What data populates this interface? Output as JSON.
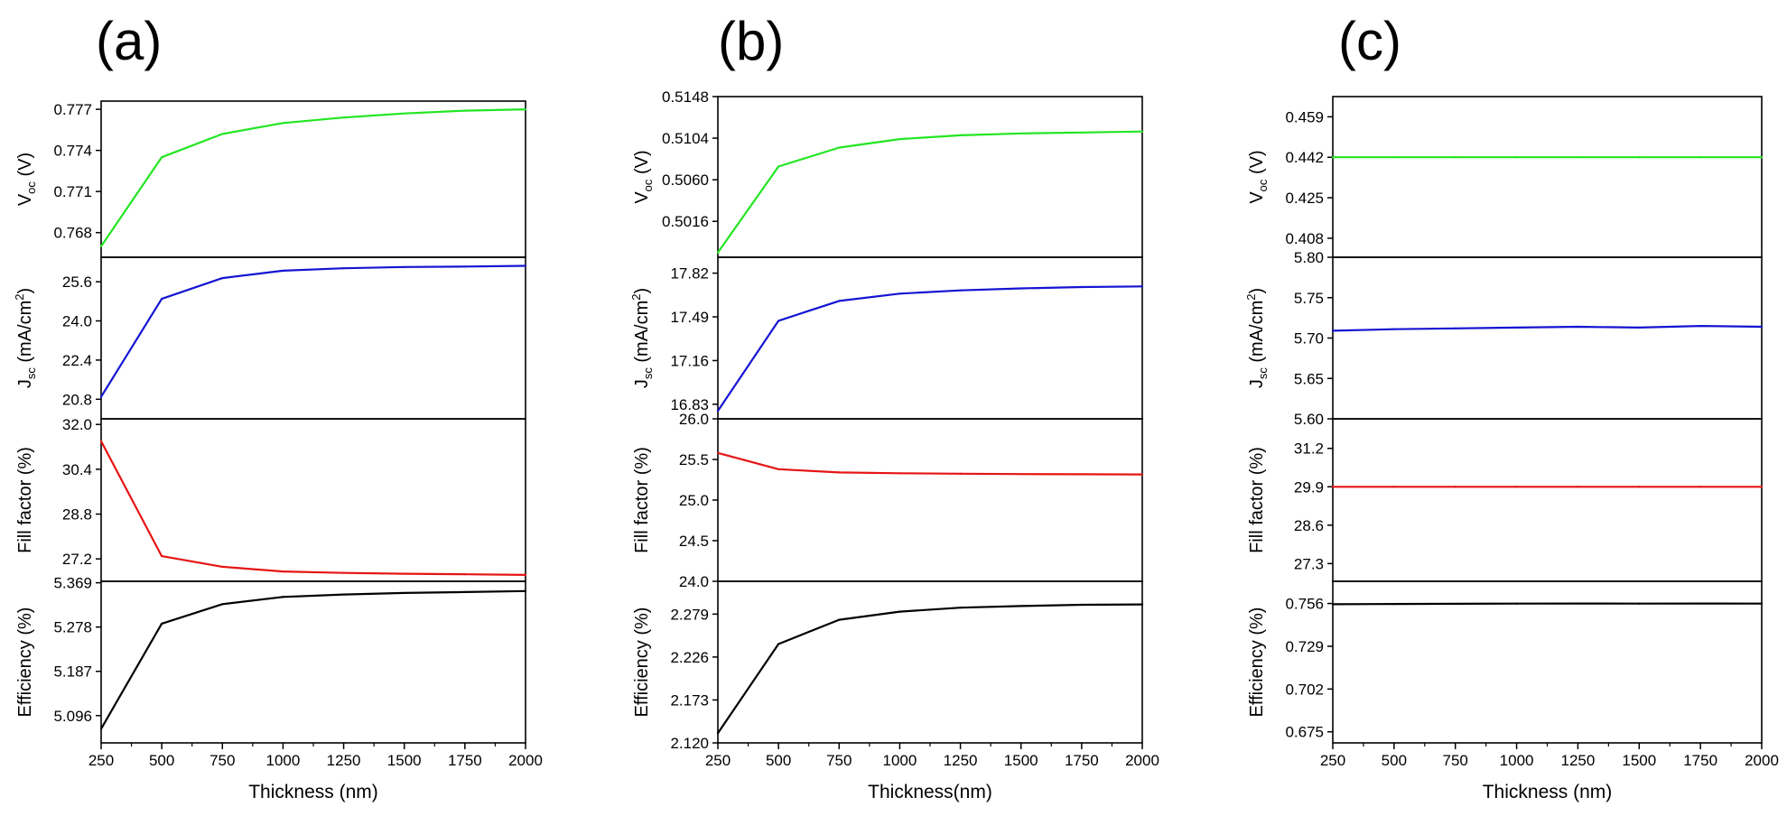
{
  "chart_data": [
    {
      "type": "line",
      "panel_label": "(a)",
      "xlabel": "Thickness (nm)",
      "x": [
        250,
        500,
        750,
        1000,
        1250,
        1500,
        1750,
        2000
      ],
      "xticks": [
        "250",
        "500",
        "750",
        "1000",
        "1250",
        "1500",
        "1750",
        "2000"
      ],
      "xlim": [
        250,
        2000
      ],
      "subplots": [
        {
          "ylabel": {
            "main": "V",
            "sub": "oc",
            "tail": " (V)"
          },
          "color": "#22e622",
          "ylim": [
            0.7662,
            0.7776
          ],
          "yticks": [
            0.768,
            0.771,
            0.774,
            0.777
          ],
          "ytick_labels": [
            "0.768",
            "0.771",
            "0.774",
            "0.777"
          ],
          "values": [
            0.767,
            0.7735,
            0.7752,
            0.776,
            0.7764,
            0.7767,
            0.7769,
            0.777
          ]
        },
        {
          "ylabel": {
            "main": "J",
            "sub": "sc",
            "tail": " (mA/cm",
            "sup": "2",
            "end": ")"
          },
          "color": "#1414d2",
          "ylim": [
            20.0,
            26.6
          ],
          "yticks": [
            20.8,
            22.4,
            24.0,
            25.6
          ],
          "ytick_labels": [
            "20.8",
            "22.4",
            "24.0",
            "25.6"
          ],
          "values": [
            20.9,
            24.9,
            25.75,
            26.05,
            26.15,
            26.2,
            26.22,
            26.25
          ]
        },
        {
          "ylabel": {
            "main": "Fill factor (%)"
          },
          "color": "#e61414",
          "ylim": [
            26.4,
            32.2
          ],
          "yticks": [
            27.2,
            28.8,
            30.4,
            32.0
          ],
          "ytick_labels": [
            "27.2",
            "28.8",
            "30.4",
            "32.0"
          ],
          "values": [
            31.4,
            27.3,
            26.92,
            26.75,
            26.7,
            26.67,
            26.65,
            26.63
          ]
        },
        {
          "ylabel": {
            "main": "Efficiency (%)"
          },
          "color": "#000000",
          "ylim": [
            5.04,
            5.372
          ],
          "yticks": [
            5.096,
            5.187,
            5.278,
            5.369
          ],
          "ytick_labels": [
            "5.096",
            "5.187",
            "5.278",
            "5.369"
          ],
          "values": [
            5.069,
            5.285,
            5.325,
            5.34,
            5.345,
            5.348,
            5.35,
            5.352
          ]
        }
      ]
    },
    {
      "type": "line",
      "panel_label": "(b)",
      "xlabel": "Thickness(nm)",
      "x": [
        250,
        500,
        750,
        1000,
        1250,
        1500,
        1750,
        2000
      ],
      "xticks": [
        "250",
        "500",
        "750",
        "1000",
        "1250",
        "1500",
        "1750",
        "2000"
      ],
      "xlim": [
        250,
        2000
      ],
      "subplots": [
        {
          "ylabel": {
            "main": "V",
            "sub": "oc",
            "tail": " (V)"
          },
          "color": "#22e622",
          "ylim": [
            0.4978,
            0.5148
          ],
          "yticks": [
            0.5016,
            0.506,
            0.5104,
            0.5148
          ],
          "ytick_labels": [
            "0.5016",
            "0.5060",
            "0.5104",
            "0.5148"
          ],
          "values": [
            0.4983,
            0.5074,
            0.5094,
            0.5103,
            0.5107,
            0.5109,
            0.511,
            0.5111
          ]
        },
        {
          "ylabel": {
            "main": "J",
            "sub": "sc",
            "tail": " (mA/cm",
            "sup": "2",
            "end": ")"
          },
          "color": "#1414d2",
          "ylim": [
            16.72,
            17.94
          ],
          "yticks": [
            16.83,
            17.16,
            17.49,
            17.82
          ],
          "ytick_labels": [
            "16.83",
            "17.16",
            "17.49",
            "17.82"
          ],
          "values": [
            16.78,
            17.46,
            17.61,
            17.665,
            17.69,
            17.705,
            17.715,
            17.72
          ]
        },
        {
          "ylabel": {
            "main": "Fill factor (%)"
          },
          "color": "#e61414",
          "ylim": [
            24.0,
            26.0
          ],
          "yticks": [
            24.0,
            24.5,
            25.0,
            25.5,
            26.0
          ],
          "ytick_labels": [
            "24.0",
            "24.5",
            "25.0",
            "25.5",
            "26.0"
          ],
          "values": [
            25.58,
            25.38,
            25.34,
            25.33,
            25.325,
            25.32,
            25.318,
            25.315
          ]
        },
        {
          "ylabel": {
            "main": "Efficiency (%)"
          },
          "color": "#000000",
          "ylim": [
            2.12,
            2.3195
          ],
          "yticks": [
            2.12,
            2.173,
            2.226,
            2.279
          ],
          "ytick_labels": [
            "2.120",
            "2.173",
            "2.226",
            "2.279"
          ],
          "values": [
            2.132,
            2.242,
            2.272,
            2.282,
            2.287,
            2.289,
            2.2905,
            2.291
          ]
        }
      ]
    },
    {
      "type": "line",
      "panel_label": "(c)",
      "xlabel": "Thickness (nm)",
      "x": [
        250,
        500,
        750,
        1000,
        1250,
        1500,
        1750,
        2000
      ],
      "xticks": [
        "250",
        "500",
        "750",
        "1000",
        "1250",
        "1500",
        "1750",
        "2000"
      ],
      "xlim": [
        250,
        2000
      ],
      "subplots": [
        {
          "ylabel": {
            "main": "V",
            "sub": "oc",
            "tail": " (V)"
          },
          "color": "#22e622",
          "ylim": [
            0.4,
            0.4675
          ],
          "yticks": [
            0.408,
            0.425,
            0.442,
            0.459
          ],
          "ytick_labels": [
            "0.408",
            "0.425",
            "0.442",
            "0.459"
          ],
          "values": [
            0.442,
            0.442,
            0.442,
            0.442,
            0.442,
            0.442,
            0.442,
            0.442
          ]
        },
        {
          "ylabel": {
            "main": "J",
            "sub": "sc",
            "tail": " (mA/cm",
            "sup": "2",
            "end": ")"
          },
          "color": "#1414d2",
          "ylim": [
            5.6,
            5.8
          ],
          "yticks": [
            5.6,
            5.65,
            5.7,
            5.75,
            5.8
          ],
          "ytick_labels": [
            "5.60",
            "5.65",
            "5.70",
            "5.75",
            "5.80"
          ],
          "values": [
            5.709,
            5.711,
            5.712,
            5.713,
            5.714,
            5.713,
            5.715,
            5.714
          ]
        },
        {
          "ylabel": {
            "main": "Fill factor (%)"
          },
          "color": "#e61414",
          "ylim": [
            26.7,
            32.2
          ],
          "yticks": [
            27.3,
            28.6,
            29.9,
            31.2
          ],
          "ytick_labels": [
            "27.3",
            "28.6",
            "29.9",
            "31.2"
          ],
          "values": [
            29.9,
            29.9,
            29.9,
            29.9,
            29.9,
            29.9,
            29.9,
            29.9
          ]
        },
        {
          "ylabel": {
            "main": "Efficiency (%)"
          },
          "color": "#000000",
          "ylim": [
            0.668,
            0.77
          ],
          "yticks": [
            0.675,
            0.702,
            0.729,
            0.756
          ],
          "ytick_labels": [
            "0.675",
            "0.702",
            "0.729",
            "0.756"
          ],
          "values": [
            0.7555,
            0.7557,
            0.7558,
            0.7559,
            0.756,
            0.7559,
            0.756,
            0.7559
          ]
        }
      ]
    }
  ]
}
